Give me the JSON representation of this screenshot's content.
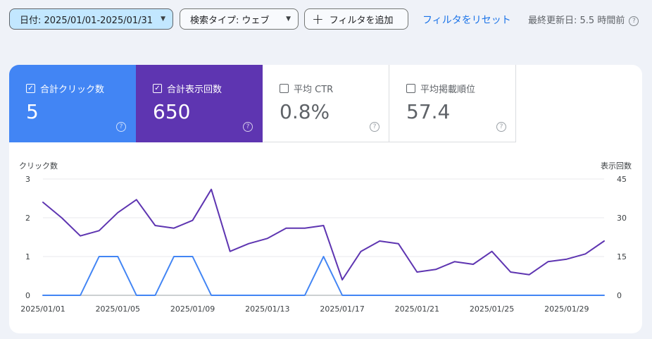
{
  "toolbar": {
    "date_filter": "日付: 2025/01/01-2025/01/31",
    "search_type": "検索タイプ: ウェブ",
    "add_filter": "フィルタを追加",
    "reset_filters": "フィルタをリセット",
    "last_updated": "最終更新日: 5.5 時間前"
  },
  "metrics": [
    {
      "label": "合計クリック数",
      "value": "5",
      "selected": true,
      "color": "#4285f4"
    },
    {
      "label": "合計表示回数",
      "value": "650",
      "selected": true,
      "color": "#5e35b1"
    },
    {
      "label": "平均 CTR",
      "value": "0.8%",
      "selected": false
    },
    {
      "label": "平均掲載順位",
      "value": "57.4",
      "selected": false
    }
  ],
  "chart_data": {
    "type": "line",
    "left_axis_label": "クリック数",
    "right_axis_label": "表示回数",
    "left_ticks": [
      "0",
      "1",
      "2",
      "3"
    ],
    "right_ticks": [
      "0",
      "15",
      "30",
      "45"
    ],
    "left_range": [
      0,
      3
    ],
    "right_range": [
      0,
      45
    ],
    "grid": true,
    "x_tick_labels": [
      "2025/01/01",
      "2025/01/05",
      "2025/01/09",
      "2025/01/13",
      "2025/01/17",
      "2025/01/21",
      "2025/01/25",
      "2025/01/29"
    ],
    "x": [
      "2025/01/01",
      "2025/01/02",
      "2025/01/03",
      "2025/01/04",
      "2025/01/05",
      "2025/01/06",
      "2025/01/07",
      "2025/01/08",
      "2025/01/09",
      "2025/01/10",
      "2025/01/11",
      "2025/01/12",
      "2025/01/13",
      "2025/01/14",
      "2025/01/15",
      "2025/01/16",
      "2025/01/17",
      "2025/01/18",
      "2025/01/19",
      "2025/01/20",
      "2025/01/21",
      "2025/01/22",
      "2025/01/23",
      "2025/01/24",
      "2025/01/25",
      "2025/01/26",
      "2025/01/27",
      "2025/01/28",
      "2025/01/29",
      "2025/01/30",
      "2025/01/31"
    ],
    "series": [
      {
        "axis": "left",
        "color": "#4285f4",
        "values": [
          0,
          0,
          0,
          1,
          1,
          0,
          0,
          1,
          1,
          0,
          0,
          0,
          0,
          0,
          0,
          1,
          0,
          0,
          0,
          0,
          0,
          0,
          0,
          0,
          0,
          0,
          0,
          0,
          0,
          0,
          0
        ]
      },
      {
        "axis": "right",
        "color": "#5e35b1",
        "values": [
          36,
          30,
          23,
          25,
          32,
          37,
          27,
          26,
          29,
          41,
          17,
          20,
          22,
          26,
          26,
          27,
          6,
          17,
          21,
          20,
          9,
          10,
          13,
          12,
          17,
          9,
          8,
          13,
          14,
          16,
          21
        ]
      }
    ]
  }
}
